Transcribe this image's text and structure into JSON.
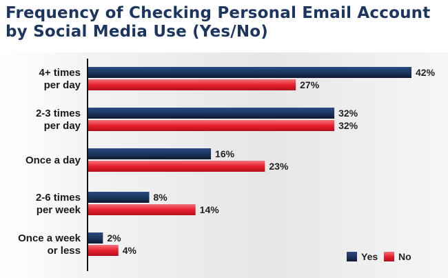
{
  "chart_data": {
    "type": "bar",
    "orientation": "horizontal",
    "title": "Frequency of Checking Personal Email Account by Social Media Use (Yes/No)",
    "categories": [
      [
        "4+ times",
        "per day"
      ],
      [
        "2-3 times",
        "per day"
      ],
      [
        "Once a day"
      ],
      [
        "2-6 times",
        "per week"
      ],
      [
        "Once a week",
        "or less"
      ]
    ],
    "series": [
      {
        "name": "Yes",
        "values": [
          42,
          32,
          16,
          8,
          2
        ],
        "labels": [
          "42%",
          "32%",
          "16%",
          "8%",
          "2%"
        ],
        "color": "#1c3660"
      },
      {
        "name": "No",
        "values": [
          27,
          32,
          23,
          14,
          4
        ],
        "labels": [
          "27%",
          "32%",
          "23%",
          "14%",
          "4%"
        ],
        "color": "#e8202e"
      }
    ],
    "xlim": [
      0,
      42
    ],
    "grid": false,
    "legend": "bottom-right"
  },
  "colors": {
    "title": "#1c3660",
    "axis": "#111111"
  }
}
